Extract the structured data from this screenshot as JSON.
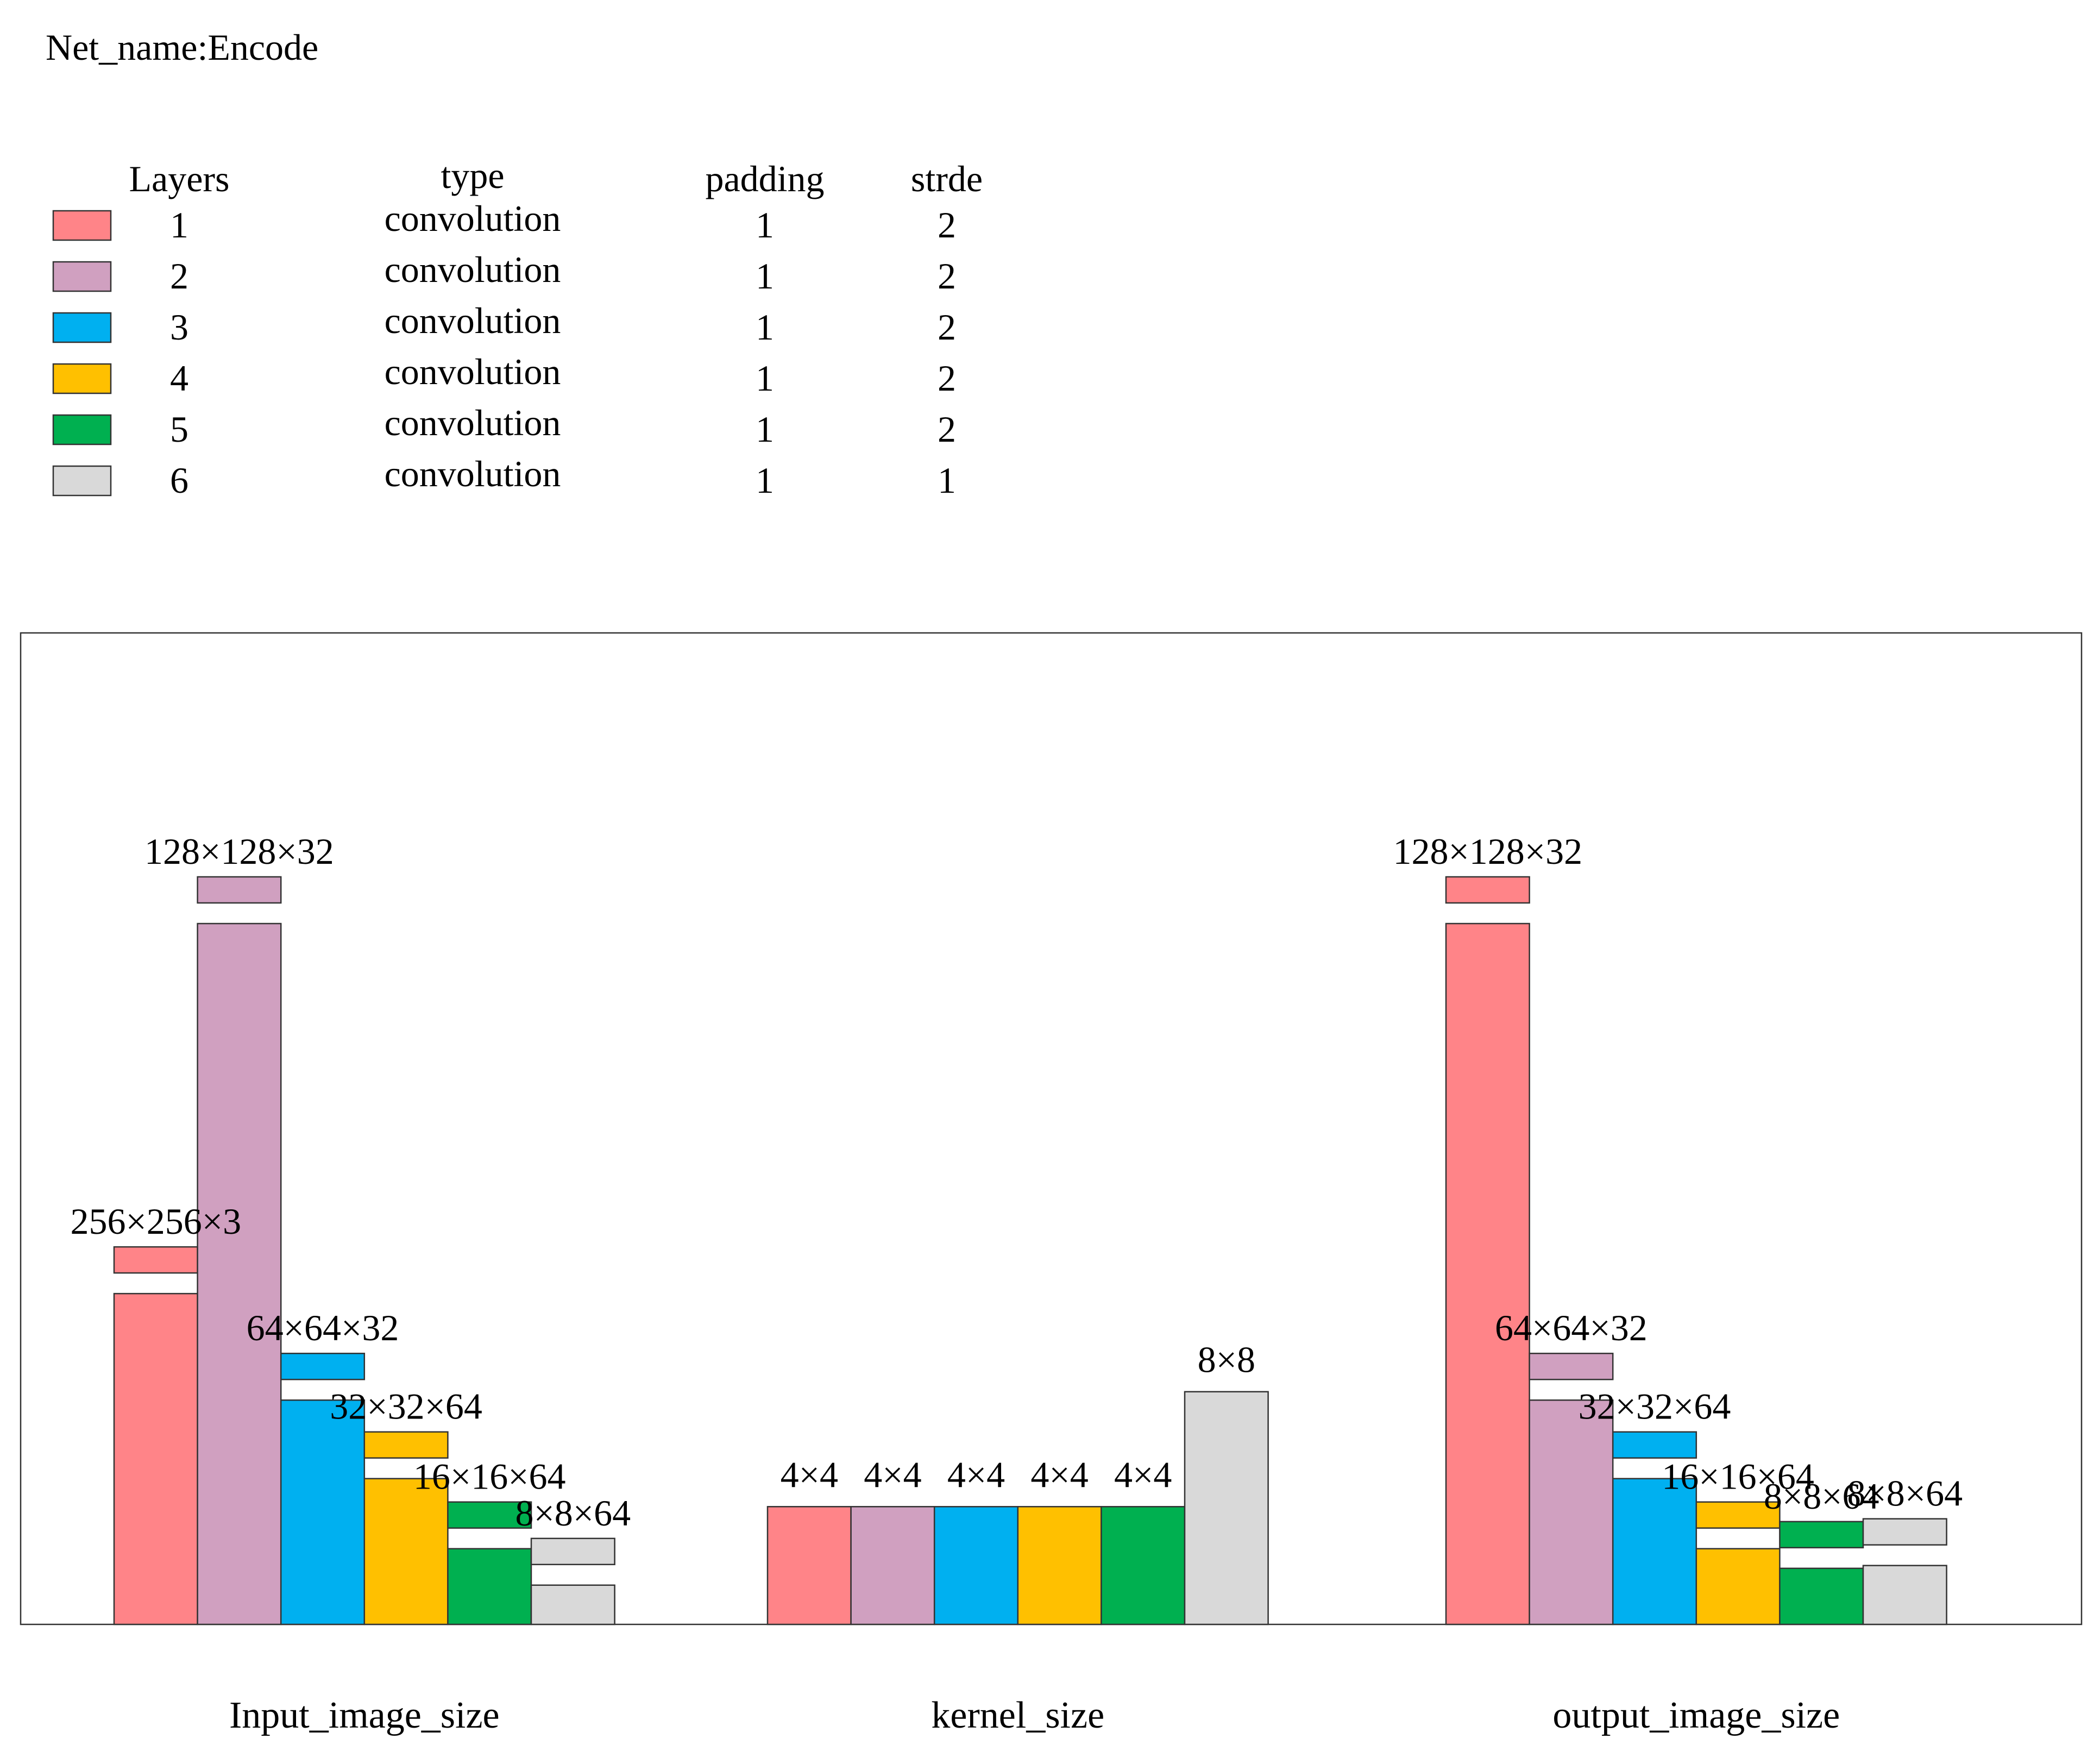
{
  "title": "Net_name:Encode",
  "legend_table": {
    "headers": [
      "Layers",
      "type",
      "padding",
      "strde"
    ],
    "rows": [
      {
        "layer": "1",
        "type": "convolution",
        "padding": "1",
        "stride": "2",
        "color": "#FF8488"
      },
      {
        "layer": "2",
        "type": "convolution",
        "padding": "1",
        "stride": "2",
        "color": "#D0A0C0"
      },
      {
        "layer": "3",
        "type": "convolution",
        "padding": "1",
        "stride": "2",
        "color": "#00B0F0"
      },
      {
        "layer": "4",
        "type": "convolution",
        "padding": "1",
        "stride": "2",
        "color": "#FFC000"
      },
      {
        "layer": "5",
        "type": "convolution",
        "padding": "1",
        "stride": "2",
        "color": "#00B050"
      },
      {
        "layer": "6",
        "type": "convolution",
        "padding": "1",
        "stride": "1",
        "color": "#D9D9D9"
      }
    ]
  },
  "chart_data": {
    "type": "bar",
    "categories": [
      "Input_image_size",
      "kernel_size",
      "output_image_size"
    ],
    "series_names": [
      "1",
      "2",
      "3",
      "4",
      "5",
      "6"
    ],
    "groups": [
      {
        "name": "Input_image_size",
        "bars": [
          {
            "layer": "1",
            "value": 59,
            "label": "256×256×3"
          },
          {
            "layer": "2",
            "value": 125,
            "label": "128×128×32"
          },
          {
            "layer": "3",
            "value": 40,
            "label": "64×64×32"
          },
          {
            "layer": "4",
            "value": 26,
            "label": "32×32×64"
          },
          {
            "layer": "5",
            "value": 13.5,
            "label": "16×16×64"
          },
          {
            "layer": "6",
            "value": 7,
            "label": "8×8×64"
          }
        ]
      },
      {
        "name": "kernel_size",
        "bars": [
          {
            "layer": "1",
            "value": 21,
            "label": "4×4"
          },
          {
            "layer": "2",
            "value": 21,
            "label": "4×4"
          },
          {
            "layer": "3",
            "value": 21,
            "label": "4×4"
          },
          {
            "layer": "4",
            "value": 21,
            "label": "4×4"
          },
          {
            "layer": "5",
            "value": 21,
            "label": "4×4"
          },
          {
            "layer": "6",
            "value": 41.5,
            "label": "8×8"
          }
        ]
      },
      {
        "name": "output_image_size",
        "bars": [
          {
            "layer": "1",
            "value": 125,
            "label": "128×128×32"
          },
          {
            "layer": "2",
            "value": 40,
            "label": "64×64×32"
          },
          {
            "layer": "3",
            "value": 26,
            "label": "32×32×64"
          },
          {
            "layer": "4",
            "value": 13.5,
            "label": "16×16×64"
          },
          {
            "layer": "5",
            "value": 10,
            "label": "8×8×64"
          },
          {
            "layer": "6",
            "value": 10.5,
            "label": "8×8×64"
          }
        ]
      }
    ],
    "ylim": [
      0,
      180
    ],
    "xlabel": "",
    "ylabel": "",
    "grid": false,
    "legend": "top-left"
  }
}
